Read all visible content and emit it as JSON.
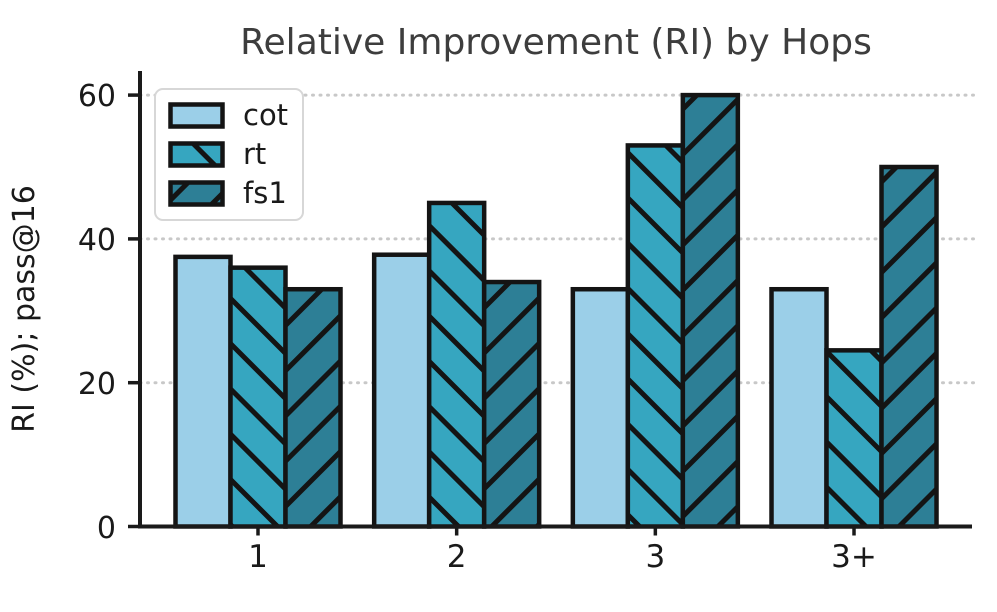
{
  "chart_data": {
    "type": "bar",
    "title": "Relative Improvement (RI) by Hops",
    "ylabel": "RI (%); pass@16",
    "xlabel": "",
    "categories": [
      "1",
      "2",
      "3",
      "3+"
    ],
    "series": [
      {
        "name": "cot",
        "color": "#9bcfe8",
        "hatch": "none",
        "values": [
          37.5,
          37.8,
          33,
          33
        ]
      },
      {
        "name": "rt",
        "color": "#36a6c0",
        "hatch": "forward",
        "values": [
          36,
          45,
          53,
          24.5
        ]
      },
      {
        "name": "fs1",
        "color": "#2d7f96",
        "hatch": "backward",
        "values": [
          33,
          34,
          60,
          50
        ]
      }
    ],
    "yticks": [
      0,
      20,
      40,
      60
    ],
    "ylim": [
      0,
      63
    ],
    "grid": "horizontal dotted",
    "legend_position": "upper left"
  },
  "colors": {
    "edge": "#141414",
    "grid": "#c8c8c8",
    "title": "#3d3d3d",
    "text": "#1a1a1a",
    "legend_border": "#d7d7d7",
    "background": "#ffffff"
  }
}
